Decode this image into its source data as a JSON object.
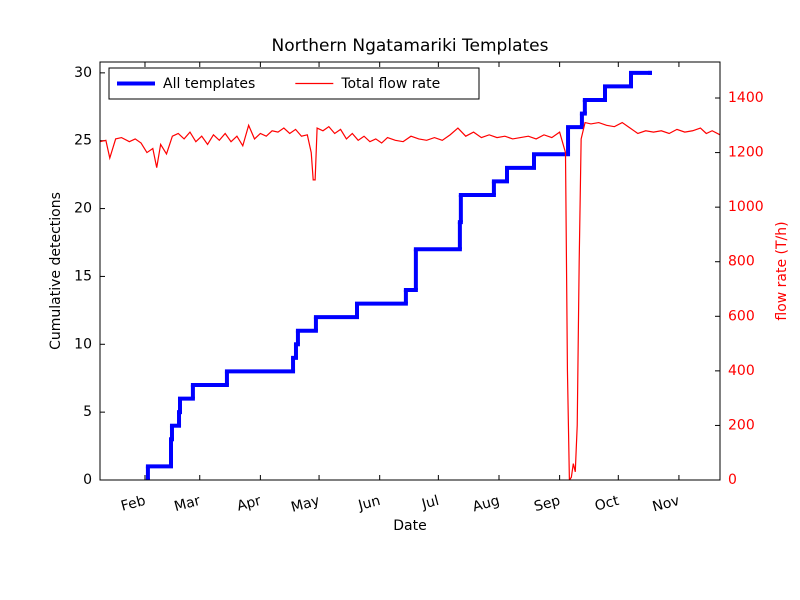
{
  "chart_data": {
    "type": "line",
    "title": "Northern Ngatamariki Templates",
    "xlabel": "Date",
    "ylabel": "Cumulative detections",
    "y2label": "flow rate (T/h)",
    "xlim": [
      9,
      326
    ],
    "xticks": [
      {
        "value": 32,
        "label": "Feb"
      },
      {
        "value": 60,
        "label": "Mar"
      },
      {
        "value": 91,
        "label": "Apr"
      },
      {
        "value": 121,
        "label": "May"
      },
      {
        "value": 152,
        "label": "Jun"
      },
      {
        "value": 182,
        "label": "Jul"
      },
      {
        "value": 213,
        "label": "Aug"
      },
      {
        "value": 244,
        "label": "Sep"
      },
      {
        "value": 274,
        "label": "Oct"
      },
      {
        "value": 305,
        "label": "Nov"
      }
    ],
    "ylim": [
      0,
      30.8
    ],
    "yticks": [
      0,
      5,
      10,
      15,
      20,
      25,
      30
    ],
    "y2lim": [
      0,
      1532
    ],
    "y2ticks": [
      0,
      200,
      400,
      600,
      800,
      1000,
      1200,
      1400
    ],
    "legend": "upper left",
    "series": [
      {
        "name": "All templates",
        "color": "#0000ff",
        "step": "post",
        "x": [
          33.5,
          33.5,
          45.3,
          45.8,
          49.4,
          49.9,
          56.5,
          73.9,
          107.7,
          109.2,
          110.2,
          119.4,
          140.4,
          165.4,
          170.5,
          193,
          193.5,
          210.4,
          217.1,
          230.9,
          248.3,
          255.4,
          256.9,
          267.2,
          280.5,
          290.2
        ],
        "values": [
          0,
          1,
          3,
          4,
          5,
          6,
          7,
          8,
          9,
          10,
          11,
          12,
          13,
          14,
          17,
          19,
          21,
          22,
          23,
          24,
          26,
          27,
          28,
          29,
          30,
          30
        ]
      },
      {
        "name": "Total flow rate",
        "color": "#ff0000",
        "axis": "y2",
        "x": [
          9,
          12,
          14,
          17,
          20,
          24,
          27,
          30,
          33,
          36,
          38,
          40,
          43,
          46,
          49,
          52,
          55,
          58,
          61,
          64,
          67,
          70,
          73,
          76,
          79,
          82,
          85,
          88,
          91,
          94,
          97,
          100,
          103,
          106,
          109,
          112,
          115,
          117,
          118,
          119,
          120,
          123,
          126,
          129,
          132,
          135,
          138,
          141,
          144,
          147,
          150,
          153,
          156,
          160,
          164,
          168,
          172,
          176,
          180,
          184,
          188,
          192,
          196,
          200,
          204,
          208,
          212,
          216,
          220,
          224,
          228,
          232,
          236,
          240,
          244,
          247,
          248,
          249,
          250,
          251,
          252,
          253,
          254,
          255,
          257,
          260,
          264,
          268,
          272,
          276,
          280,
          284,
          288,
          292,
          296,
          300,
          304,
          308,
          312,
          316,
          319,
          322,
          326
        ],
        "values": [
          1240,
          1245,
          1180,
          1250,
          1255,
          1240,
          1250,
          1235,
          1200,
          1215,
          1145,
          1230,
          1195,
          1260,
          1270,
          1250,
          1275,
          1240,
          1260,
          1230,
          1265,
          1245,
          1270,
          1240,
          1260,
          1225,
          1300,
          1250,
          1270,
          1260,
          1280,
          1275,
          1290,
          1270,
          1285,
          1260,
          1265,
          1200,
          1100,
          1100,
          1290,
          1280,
          1295,
          1270,
          1285,
          1250,
          1270,
          1245,
          1260,
          1240,
          1250,
          1235,
          1255,
          1245,
          1240,
          1260,
          1250,
          1245,
          1255,
          1245,
          1265,
          1290,
          1260,
          1275,
          1255,
          1265,
          1255,
          1260,
          1250,
          1255,
          1260,
          1250,
          1265,
          1255,
          1275,
          1200,
          400,
          0,
          10,
          60,
          30,
          200,
          800,
          1250,
          1310,
          1305,
          1310,
          1300,
          1295,
          1310,
          1290,
          1270,
          1280,
          1275,
          1280,
          1270,
          1285,
          1275,
          1280,
          1290,
          1270,
          1280,
          1265
        ]
      }
    ]
  }
}
